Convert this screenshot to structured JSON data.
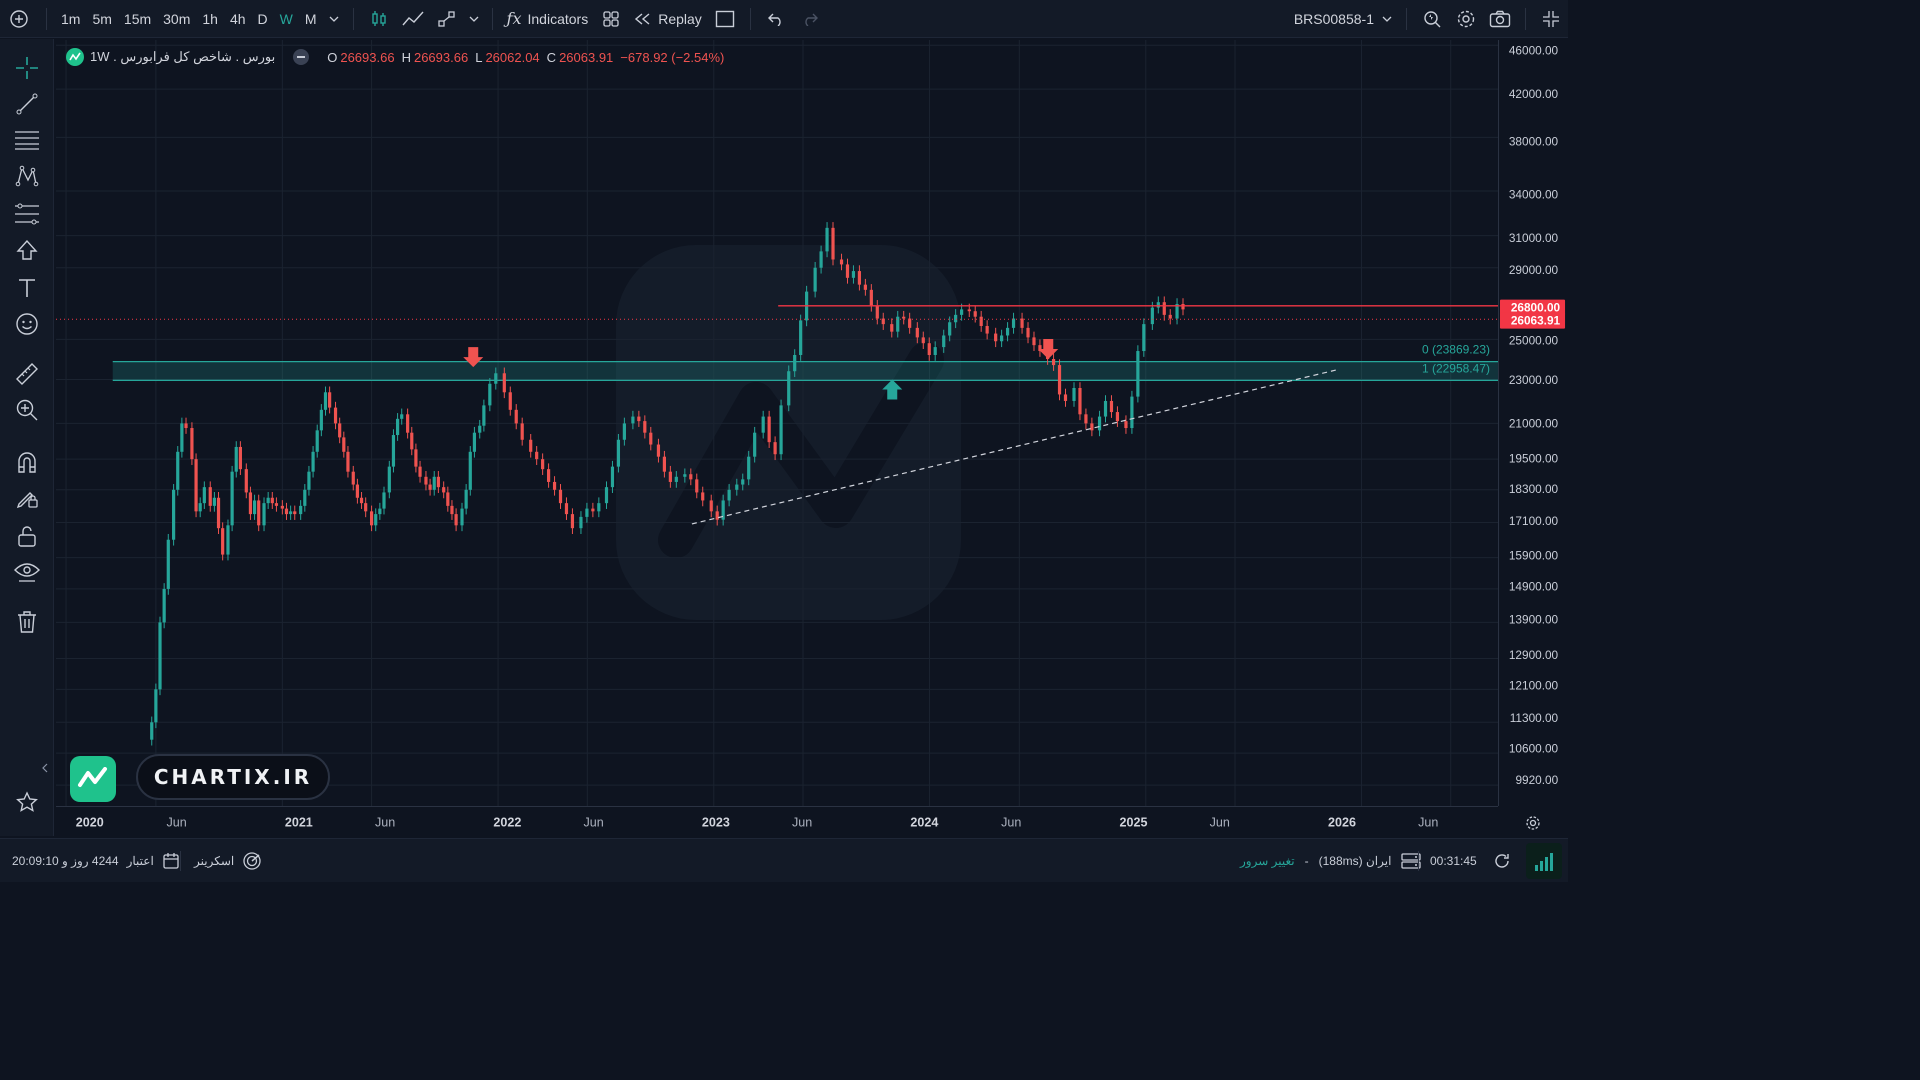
{
  "toolbar": {
    "timeframes": [
      "1m",
      "5m",
      "15m",
      "30m",
      "1h",
      "4h",
      "D",
      "W",
      "M"
    ],
    "active_timeframe": "W",
    "indicators_label": "Indicators",
    "replay_label": "Replay",
    "symbol_code": "BRS00858-1"
  },
  "legend": {
    "title": "بورس . شاخص کل فرابورس . 1W",
    "open_label": "O",
    "open_value": "26693.66",
    "high_label": "H",
    "high_value": "26693.66",
    "low_label": "L",
    "low_value": "26062.04",
    "close_label": "C",
    "close_value": "26063.91",
    "change": "−678.92 (−2.54%)"
  },
  "fib": {
    "level0": "0 (23869.23)",
    "level1": "1 (22958.47)"
  },
  "price_badges": {
    "resistance": "26800.00",
    "last": "26063.91"
  },
  "watermark": {
    "brand": "CHARTIX.IR"
  },
  "bottom": {
    "validity_label": "اعتبار",
    "validity_value": "4244 روز و 20:09:10",
    "screener_label": "اسکرینر",
    "change_server_label": "تغییر سرور",
    "server_label": "ایران (188ms)",
    "dash": "-",
    "clock": "00:31:45"
  },
  "colors": {
    "up": "#26a69a",
    "down": "#ef5350",
    "background": "#0e1420",
    "accent": "#26a69a",
    "resistance_line": "#f23645"
  },
  "chart_data": {
    "type": "candlestick",
    "interval": "1W",
    "y_scale": "log",
    "ylim": [
      9500,
      46500
    ],
    "y_ticks": [
      46000,
      42000,
      38000,
      34000,
      31000,
      29000,
      25000,
      23000,
      21000,
      19500,
      18300,
      17100,
      15900,
      14900,
      13900,
      12900,
      12100,
      11300,
      10600,
      9920
    ],
    "y_tick_labels": [
      "46000.00",
      "42000.00",
      "38000.00",
      "34000.00",
      "31000.00",
      "29000.00",
      "25000.00",
      "23000.00",
      "21000.00",
      "19500.00",
      "18300.00",
      "17100.00",
      "15900.00",
      "14900.00",
      "13900.00",
      "12900.00",
      "12100.00",
      "11300.00",
      "10600.00",
      "9920.00"
    ],
    "x_range": [
      "2019-12-15",
      "2026-08-20"
    ],
    "x_ticks": [
      {
        "date": "2020-01-01",
        "label": "2020"
      },
      {
        "date": "2020-06-01",
        "label": "Jun"
      },
      {
        "date": "2021-01-01",
        "label": "2021"
      },
      {
        "date": "2021-06-01",
        "label": "Jun"
      },
      {
        "date": "2022-01-01",
        "label": "2022"
      },
      {
        "date": "2022-06-01",
        "label": "Jun"
      },
      {
        "date": "2023-01-01",
        "label": "2023"
      },
      {
        "date": "2023-06-01",
        "label": "Jun"
      },
      {
        "date": "2024-01-01",
        "label": "2024"
      },
      {
        "date": "2024-06-01",
        "label": "Jun"
      },
      {
        "date": "2025-01-01",
        "label": "2025"
      },
      {
        "date": "2025-06-01",
        "label": "Jun"
      },
      {
        "date": "2026-01-01",
        "label": "2026"
      },
      {
        "date": "2026-06-01",
        "label": "Jun"
      }
    ],
    "candle_closes": [
      [
        "2020-05-11",
        10900
      ],
      [
        "2020-05-25",
        11300
      ],
      [
        "2020-06-01",
        12100
      ],
      [
        "2020-06-08",
        13900
      ],
      [
        "2020-06-15",
        14900
      ],
      [
        "2020-06-22",
        16500
      ],
      [
        "2020-07-01",
        18300
      ],
      [
        "2020-07-08",
        19800
      ],
      [
        "2020-07-15",
        21000
      ],
      [
        "2020-07-22",
        20800
      ],
      [
        "2020-08-01",
        19500
      ],
      [
        "2020-08-08",
        17500
      ],
      [
        "2020-08-15",
        17800
      ],
      [
        "2020-08-22",
        18400
      ],
      [
        "2020-09-01",
        17700
      ],
      [
        "2020-09-08",
        18000
      ],
      [
        "2020-09-15",
        16900
      ],
      [
        "2020-09-22",
        16000
      ],
      [
        "2020-10-01",
        17000
      ],
      [
        "2020-10-08",
        19000
      ],
      [
        "2020-10-15",
        20000
      ],
      [
        "2020-10-22",
        19100
      ],
      [
        "2020-11-01",
        18200
      ],
      [
        "2020-11-08",
        17400
      ],
      [
        "2020-11-15",
        17900
      ],
      [
        "2020-11-22",
        17000
      ],
      [
        "2020-12-01",
        17800
      ],
      [
        "2020-12-08",
        18000
      ],
      [
        "2020-12-15",
        17800
      ],
      [
        "2020-12-22",
        17700
      ],
      [
        "2021-01-01",
        17600
      ],
      [
        "2021-01-08",
        17400
      ],
      [
        "2021-01-15",
        17500
      ],
      [
        "2021-01-22",
        17400
      ],
      [
        "2021-02-01",
        17700
      ],
      [
        "2021-02-08",
        18300
      ],
      [
        "2021-02-15",
        19000
      ],
      [
        "2021-02-22",
        19800
      ],
      [
        "2021-03-01",
        20700
      ],
      [
        "2021-03-08",
        21600
      ],
      [
        "2021-03-15",
        22400
      ],
      [
        "2021-03-22",
        21700
      ],
      [
        "2021-04-01",
        21000
      ],
      [
        "2021-04-08",
        20400
      ],
      [
        "2021-04-15",
        19800
      ],
      [
        "2021-04-22",
        19000
      ],
      [
        "2021-05-01",
        18500
      ],
      [
        "2021-05-08",
        18000
      ],
      [
        "2021-05-15",
        17800
      ],
      [
        "2021-05-22",
        17500
      ],
      [
        "2021-06-01",
        17000
      ],
      [
        "2021-06-08",
        17400
      ],
      [
        "2021-06-15",
        17600
      ],
      [
        "2021-06-22",
        18200
      ],
      [
        "2021-07-01",
        19200
      ],
      [
        "2021-07-08",
        20500
      ],
      [
        "2021-07-15",
        21200
      ],
      [
        "2021-07-22",
        21400
      ],
      [
        "2021-08-01",
        20600
      ],
      [
        "2021-08-08",
        19900
      ],
      [
        "2021-08-15",
        19200
      ],
      [
        "2021-08-22",
        18800
      ],
      [
        "2021-09-01",
        18500
      ],
      [
        "2021-09-08",
        18300
      ],
      [
        "2021-09-15",
        18800
      ],
      [
        "2021-09-22",
        18400
      ],
      [
        "2021-10-01",
        18200
      ],
      [
        "2021-10-08",
        17700
      ],
      [
        "2021-10-15",
        17400
      ],
      [
        "2021-10-22",
        17000
      ],
      [
        "2021-11-01",
        17600
      ],
      [
        "2021-11-08",
        18300
      ],
      [
        "2021-11-15",
        19800
      ],
      [
        "2021-11-22",
        20600
      ],
      [
        "2021-12-01",
        20900
      ]
    ],
    "annotations": {
      "horizontal_resistance": 26800,
      "last_price": 26063.91,
      "fib_zone": [
        22958.47,
        23869.23
      ],
      "trendline": {
        "from": [
          "2022-11-25",
          17050
        ],
        "to": [
          "2025-11-25",
          23500
        ]
      },
      "arrows": [
        {
          "date": "2021-11-20",
          "price": 23600,
          "dir": "down"
        },
        {
          "date": "2023-10-30",
          "price": 23000,
          "dir": "up"
        },
        {
          "date": "2024-07-20",
          "price": 24000,
          "dir": "down"
        }
      ]
    }
  }
}
